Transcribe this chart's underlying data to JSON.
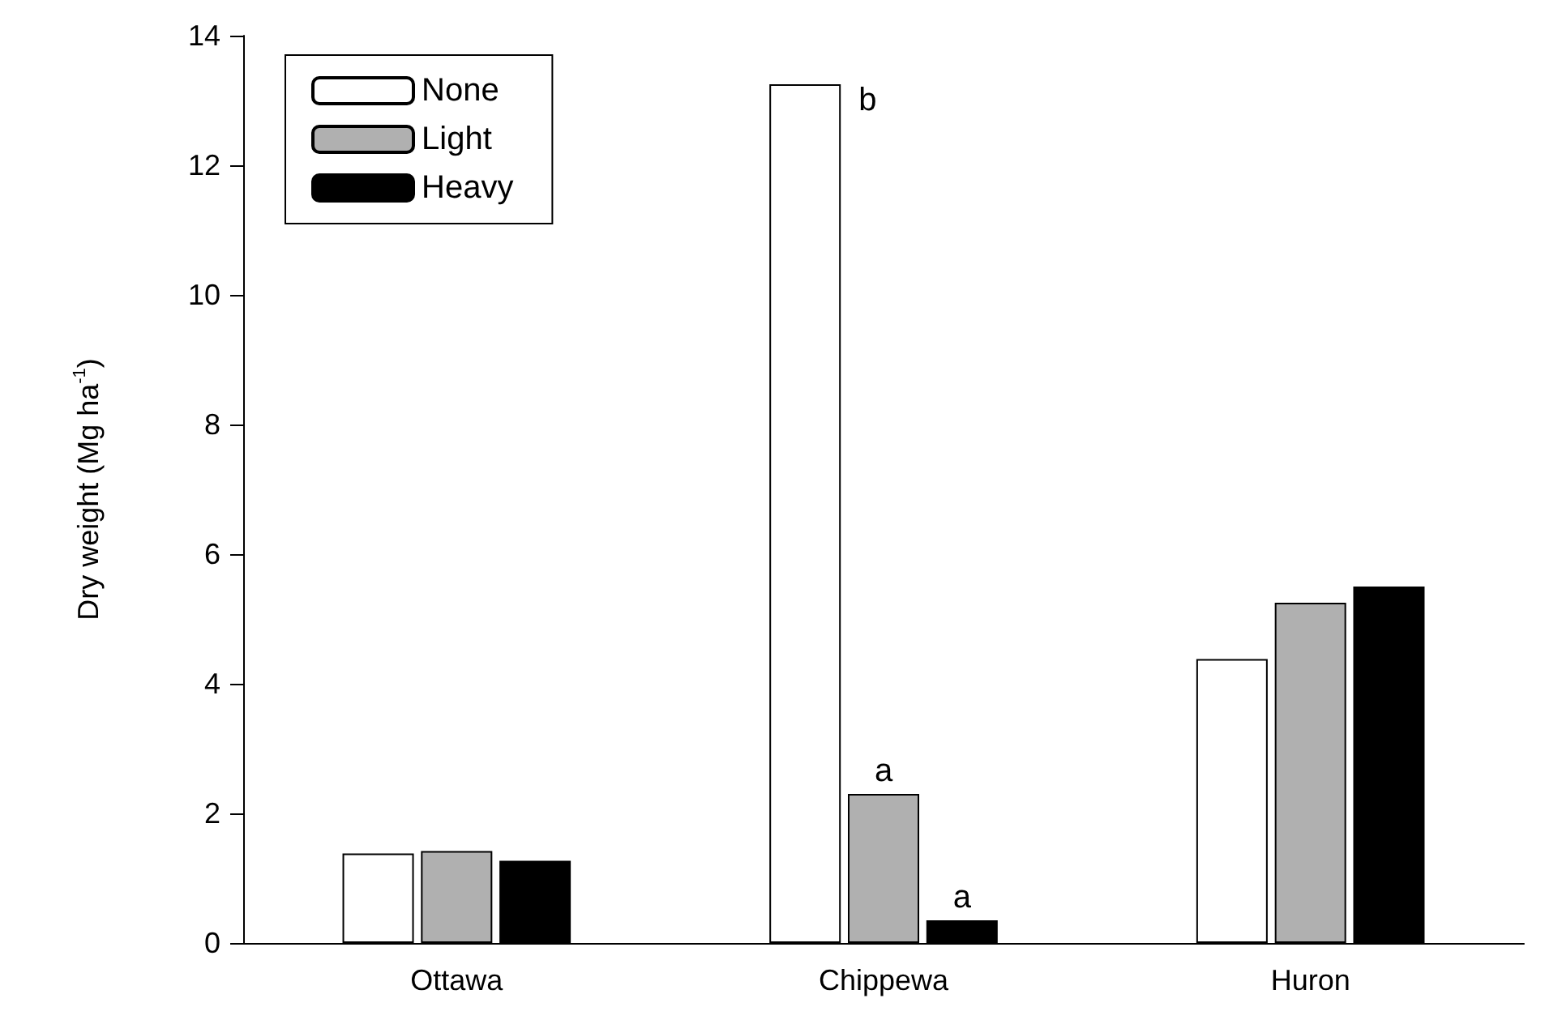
{
  "chart_data": {
    "type": "bar",
    "ylabel": "Dry weight (Mg ha$^{-1}$)",
    "categories": [
      "Ottawa",
      "Chippewa",
      "Huron"
    ],
    "series": [
      {
        "name": "None",
        "color": "#ffffff",
        "values": [
          1.38,
          13.25,
          4.38
        ],
        "value_labels": [
          null,
          "b",
          null
        ]
      },
      {
        "name": "Light",
        "color": "#b0b0b0",
        "values": [
          1.42,
          2.3,
          5.25
        ],
        "value_labels": [
          null,
          "a",
          null
        ]
      },
      {
        "name": "Heavy",
        "color": "#000000",
        "values": [
          1.27,
          0.35,
          5.5
        ],
        "value_labels": [
          null,
          "a",
          null
        ]
      }
    ],
    "ylim": [
      0,
      14
    ],
    "yticks": [
      0,
      2,
      4,
      6,
      8,
      10,
      12,
      14
    ],
    "grid": false,
    "legend": "top left"
  }
}
